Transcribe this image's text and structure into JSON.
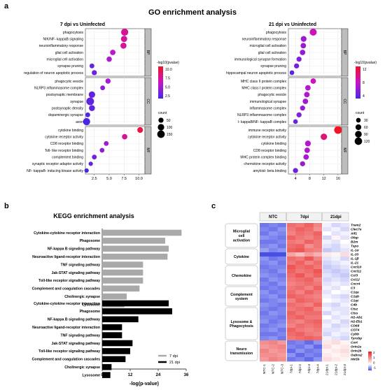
{
  "panel_a": {
    "letter": "a",
    "title": "GO enrichment analysis",
    "legend_color_title": "-log10(pvalue)",
    "legend_size_title": "count",
    "left": {
      "title": "7 dpi vs Uninfected",
      "x_ticks": [
        "2.5",
        "5.0",
        "7.5",
        "10.0"
      ],
      "color_ticks": [
        "10.0",
        "7.5",
        "5.0",
        "2.5"
      ],
      "size_ticks": [
        "50",
        "100",
        "150"
      ],
      "groups": [
        {
          "label": "BP",
          "terms": [
            {
              "term": "phagocytosis",
              "x": 7.6,
              "count": 130
            },
            {
              "term": "NIK/NF- kappaB signaling",
              "x": 7.5,
              "count": 90
            },
            {
              "term": "neuroinflammatory response",
              "x": 7.4,
              "count": 85
            },
            {
              "term": "glial cell activation",
              "x": 5.6,
              "count": 60
            },
            {
              "term": "microglial cell activation",
              "x": 5.0,
              "count": 55
            },
            {
              "term": "synapse pruning",
              "x": 2.1,
              "count": 40
            },
            {
              "term": "regulation of neuron apoptotic process",
              "x": 2.5,
              "count": 50
            }
          ]
        },
        {
          "label": "CC",
          "terms": [
            {
              "term": "phagocytic vesicle",
              "x": 4.8,
              "count": 55
            },
            {
              "term": "NLRP3 inflammasome complex",
              "x": 3.9,
              "count": 40
            },
            {
              "term": "postsynaptic membrane",
              "x": 2.1,
              "count": 100
            },
            {
              "term": "synapse",
              "x": 1.8,
              "count": 160
            },
            {
              "term": "postsynaptic density",
              "x": 2.1,
              "count": 80
            },
            {
              "term": "dopaminergic synapse",
              "x": 1.4,
              "count": 40
            },
            {
              "term": "axon",
              "x": 1.2,
              "count": 130
            }
          ]
        },
        {
          "label": "MF",
          "terms": [
            {
              "term": "cytokine binding",
              "x": 10.2,
              "count": 70
            },
            {
              "term": "cytokine receptor activity",
              "x": 7.6,
              "count": 60
            },
            {
              "term": "CD8 receptor binding",
              "x": 4.5,
              "count": 40
            },
            {
              "term": "Toll- like receptor binding",
              "x": 3.8,
              "count": 40
            },
            {
              "term": "complement binding",
              "x": 2.5,
              "count": 40
            },
            {
              "term": "synaptic receptor adaptor activity",
              "x": 1.9,
              "count": 30
            },
            {
              "term": "NF- kappaB- inducing kinase activity",
              "x": 1.2,
              "count": 30
            }
          ]
        }
      ]
    },
    "right": {
      "title": "21 dpi vs Uninfected",
      "x_ticks": [
        "4",
        "8",
        "12",
        "16"
      ],
      "color_ticks": [
        "12",
        "8",
        "4"
      ],
      "size_ticks": [
        "30",
        "60",
        "90",
        "120"
      ],
      "groups": [
        {
          "label": "BP",
          "terms": [
            {
              "term": "phagocytosis",
              "x": 9.0,
              "count": 100
            },
            {
              "term": "neuroinflammatory response",
              "x": 6.3,
              "count": 60
            },
            {
              "term": "microglial cell activation",
              "x": 6.2,
              "count": 50
            },
            {
              "term": "glial cell activation",
              "x": 6.0,
              "count": 50
            },
            {
              "term": "immunological synapse formation",
              "x": 5.0,
              "count": 40
            },
            {
              "term": "synapse pruning",
              "x": 4.3,
              "count": 40
            },
            {
              "term": "hippocampal neuron apoptotic process",
              "x": 3.0,
              "count": 30
            }
          ]
        },
        {
          "label": "CC",
          "terms": [
            {
              "term": "MHC class II protein complex",
              "x": 9.0,
              "count": 50
            },
            {
              "term": "MHC class I protein complex",
              "x": 7.5,
              "count": 50
            },
            {
              "term": "phagocytic vesicle",
              "x": 7.2,
              "count": 50
            },
            {
              "term": "immunological synapse",
              "x": 6.8,
              "count": 50
            },
            {
              "term": "inflammasome complex",
              "x": 6.0,
              "count": 40
            },
            {
              "term": "NLRP3 inflammasome complex",
              "x": 5.0,
              "count": 40
            },
            {
              "term": "I- kappaB/NF- kappaB complex",
              "x": 4.0,
              "count": 30
            }
          ]
        },
        {
          "label": "MF",
          "terms": [
            {
              "term": "immune receptor activity",
              "x": 16.0,
              "count": 130
            },
            {
              "term": "cytokine receptor activity",
              "x": 12.0,
              "count": 80
            },
            {
              "term": "cytokine binding",
              "x": 7.5,
              "count": 60
            },
            {
              "term": "CD8 receptor binding",
              "x": 7.3,
              "count": 50
            },
            {
              "term": "MHC protein complex binding",
              "x": 7.0,
              "count": 50
            },
            {
              "term": "chemokine receptor activity",
              "x": 6.0,
              "count": 40
            },
            {
              "term": "amyloid- beta binding",
              "x": 4.0,
              "count": 40
            }
          ]
        }
      ]
    }
  },
  "panel_b": {
    "letter": "b",
    "title": "KEGG enrichment analysis",
    "xlabel": "-log(p-value)",
    "x_ticks": [
      "0",
      "12",
      "24",
      "36"
    ],
    "legend": [
      {
        "name": "7 dpi",
        "color": "#a9a9a9"
      },
      {
        "name": "21 dpi",
        "color": "#000000"
      }
    ],
    "series_7": [
      {
        "label": "Cytokine-cytokine receptor interaction",
        "value": 34
      },
      {
        "label": "Phagosome",
        "value": 27
      },
      {
        "label": "NF-kappa B signaling pathway",
        "value": 28.5
      },
      {
        "label": "Neuroactive ligand-receptor interaction",
        "value": 28
      },
      {
        "label": "TNF signaling pathway",
        "value": 17.5
      },
      {
        "label": "Jak-STAT signaling pathway",
        "value": 17.5
      },
      {
        "label": "Toll-like receptor signaling pathway",
        "value": 17.5
      },
      {
        "label": "Complement and coagulation cascades",
        "value": 16
      },
      {
        "label": "Cholinergic synapse",
        "value": 10.5
      },
      {
        "label": "Lysosome",
        "value": 9.5
      }
    ],
    "series_21": [
      {
        "label": "Cytokine-cytokine receptor interaction",
        "value": 28.5
      },
      {
        "label": "Phagosome",
        "value": 30
      },
      {
        "label": "NF-kappa B signaling pathway",
        "value": 15.5
      },
      {
        "label": "Neuroactive ligand-receptor interaction",
        "value": 8.5
      },
      {
        "label": "TNF signaling pathway",
        "value": 8.5
      },
      {
        "label": "Jak-STAT signaling pathway",
        "value": 13
      },
      {
        "label": "Toll-like receptor signaling pathway",
        "value": 12
      },
      {
        "label": "Complement and coagulation cascades",
        "value": 10
      },
      {
        "label": "Cholinergic synapse",
        "value": 4
      },
      {
        "label": "Lysosome",
        "value": 3.5
      }
    ]
  },
  "panel_c": {
    "letter": "c",
    "col_groups": [
      "NTC",
      "7dpi",
      "21dpi"
    ],
    "col_labels": [
      "NTC-1",
      "NTC-2",
      "NTC-3",
      "7dpi-1",
      "7dpi-2",
      "7dpi-3",
      "7dpi-4",
      "21dpi-1",
      "21dpi-2",
      "21dpi-3"
    ],
    "color_ticks": [
      "2",
      "1",
      "0",
      "-1"
    ],
    "row_groups": [
      {
        "label": "Microglial cell activation",
        "genes": [
          "Trem2",
          "Clec7a",
          "Aif1",
          "Gfap",
          "B2m",
          "Tspo"
        ]
      },
      {
        "label": "Cytokine",
        "genes": [
          "IL-1α",
          "IL-33",
          "IL-1β",
          "IL-21"
        ]
      },
      {
        "label": "Chemokine",
        "genes": [
          "Cxcl10",
          "Cxcl11",
          "Ccl3",
          "Ccl12",
          "Cxcr4"
        ]
      },
      {
        "label": "Complement system",
        "genes": [
          "C3",
          "C1qa",
          "C1qb",
          "C1qc",
          "C4b"
        ]
      },
      {
        "label": "Lysosome & Phagocytosis",
        "genes": [
          "Ctsz",
          "Ctss",
          "H2-Ab1",
          "H2-Eb1",
          "CD68",
          "CD74",
          "Cybb",
          "Tyrobp"
        ]
      },
      {
        "label": "Neuro transmission",
        "genes": [
          "Cort",
          "Grin2a",
          "Grin2b",
          "Gabra2",
          "Htr5b"
        ]
      }
    ],
    "values": [
      [
        -1.0,
        -0.9,
        -1.0,
        1.3,
        1.2,
        1.4,
        1.1,
        -0.1,
        -0.3,
        -0.2
      ],
      [
        -0.9,
        -1.0,
        -0.8,
        1.2,
        1.4,
        1.3,
        1.0,
        -0.2,
        -0.1,
        -0.3
      ],
      [
        -1.0,
        -0.8,
        -0.9,
        1.1,
        1.3,
        1.2,
        1.4,
        0.0,
        -0.2,
        -0.1
      ],
      [
        -0.8,
        -0.9,
        -1.0,
        1.4,
        1.2,
        1.1,
        1.3,
        -0.3,
        0.1,
        -0.2
      ],
      [
        -1.0,
        -1.0,
        -0.9,
        1.2,
        1.1,
        1.4,
        1.2,
        -0.1,
        -0.2,
        0.0
      ],
      [
        -0.9,
        -0.8,
        -1.0,
        1.3,
        1.4,
        1.0,
        1.2,
        -0.2,
        -0.3,
        -0.1
      ],
      [
        -0.7,
        -0.9,
        -0.8,
        1.4,
        1.5,
        1.2,
        1.1,
        -0.4,
        -0.3,
        -0.2
      ],
      [
        -1.8,
        -1.5,
        -1.6,
        0.8,
        0.6,
        0.9,
        0.7,
        0.2,
        0.1,
        0.3
      ],
      [
        -0.8,
        -1.0,
        -0.9,
        1.3,
        1.2,
        1.5,
        1.1,
        -0.2,
        -0.1,
        -0.3
      ],
      [
        -0.9,
        -0.8,
        -1.0,
        1.2,
        1.4,
        1.1,
        1.3,
        -0.3,
        -0.2,
        -0.1
      ],
      [
        -1.0,
        -0.9,
        -0.9,
        1.5,
        1.3,
        1.4,
        1.2,
        -0.4,
        -0.3,
        -0.2
      ],
      [
        -0.9,
        -1.0,
        -0.8,
        1.4,
        1.2,
        1.3,
        1.5,
        -0.3,
        -0.4,
        -0.3
      ],
      [
        -0.8,
        -0.9,
        -1.0,
        1.3,
        1.5,
        1.2,
        1.4,
        -0.2,
        -0.3,
        -0.4
      ],
      [
        -1.0,
        -0.8,
        -0.9,
        1.2,
        1.3,
        1.4,
        1.1,
        -0.3,
        -0.2,
        -0.3
      ],
      [
        -0.9,
        -1.0,
        -0.8,
        1.1,
        1.2,
        1.3,
        1.2,
        -0.2,
        -0.1,
        -0.2
      ],
      [
        -1.0,
        -0.9,
        -1.0,
        1.2,
        1.3,
        1.1,
        1.4,
        -0.1,
        -0.2,
        0.0
      ],
      [
        -0.8,
        -1.0,
        -0.9,
        1.3,
        1.1,
        1.4,
        1.2,
        -0.2,
        0.0,
        -0.1
      ],
      [
        -0.9,
        -0.8,
        -1.0,
        1.4,
        1.3,
        1.2,
        1.1,
        -0.1,
        -0.2,
        -0.3
      ],
      [
        -1.0,
        -0.9,
        -0.8,
        1.1,
        1.4,
        1.3,
        1.2,
        0.0,
        -0.1,
        -0.2
      ],
      [
        -0.8,
        -0.9,
        -1.0,
        1.3,
        1.2,
        1.1,
        1.4,
        -0.2,
        -0.3,
        -0.1
      ],
      [
        -0.9,
        -1.0,
        -0.9,
        1.2,
        1.3,
        1.4,
        1.1,
        -0.1,
        -0.2,
        -0.2
      ],
      [
        -1.0,
        -0.8,
        -0.9,
        1.4,
        1.2,
        1.3,
        1.3,
        -0.3,
        -0.1,
        -0.2
      ],
      [
        -0.9,
        -0.9,
        -1.0,
        1.3,
        1.4,
        1.2,
        1.2,
        0.0,
        -0.2,
        -0.1
      ],
      [
        -0.8,
        -1.0,
        -0.9,
        1.2,
        1.1,
        1.3,
        1.4,
        -0.2,
        -0.1,
        -0.3
      ],
      [
        -1.0,
        -0.9,
        -0.8,
        1.1,
        1.3,
        1.2,
        1.3,
        -0.1,
        -0.3,
        -0.2
      ],
      [
        -0.9,
        -0.8,
        -1.0,
        1.4,
        1.2,
        1.1,
        1.2,
        -0.2,
        -0.2,
        -0.1
      ],
      [
        -1.0,
        -1.0,
        -0.9,
        1.3,
        1.4,
        1.2,
        1.1,
        -0.3,
        -0.1,
        -0.2
      ],
      [
        -0.9,
        -0.8,
        -1.0,
        1.2,
        1.3,
        1.4,
        1.3,
        -0.1,
        -0.2,
        -0.3
      ],
      [
        1.0,
        1.1,
        0.9,
        -1.0,
        -0.9,
        -1.1,
        -0.8,
        0.2,
        0.3,
        0.1
      ],
      [
        0.9,
        1.0,
        1.1,
        -0.9,
        -1.0,
        -0.8,
        -1.1,
        0.3,
        0.1,
        0.2
      ],
      [
        1.1,
        0.9,
        1.0,
        -1.1,
        -0.8,
        -1.0,
        -0.9,
        0.1,
        0.2,
        0.3
      ],
      [
        1.0,
        1.0,
        0.9,
        -0.8,
        -1.1,
        -0.9,
        -1.0,
        0.2,
        0.1,
        0.2
      ],
      [
        0.9,
        1.1,
        1.0,
        -1.0,
        -0.9,
        -1.1,
        -0.8,
        0.3,
        0.2,
        0.1
      ]
    ]
  }
}
